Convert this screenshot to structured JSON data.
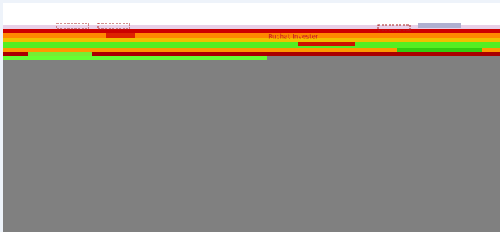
{
  "screen": {
    "label": "Ruchat Invester"
  }
}
